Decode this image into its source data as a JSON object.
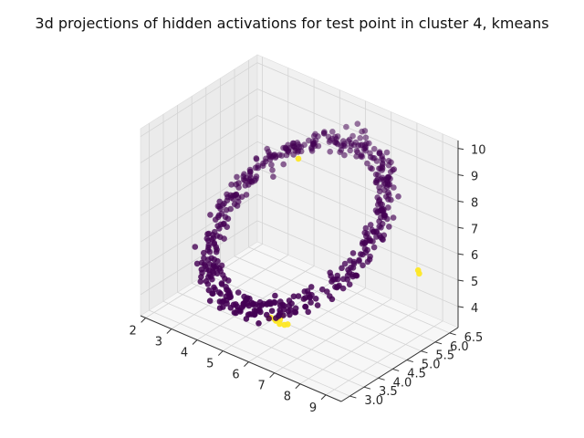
{
  "chart_data": {
    "type": "scatter",
    "projection": "3d",
    "title": "3d projections of hidden activations for test point in cluster 4, kmeans",
    "xlabel": "",
    "ylabel": "",
    "zlabel": "",
    "xlim": [
      1.8,
      9.6
    ],
    "ylim": [
      2.7,
      6.8
    ],
    "zlim": [
      3.2,
      10.3
    ],
    "x_ticks": [
      2,
      3,
      4,
      5,
      6,
      7,
      8,
      9
    ],
    "y_ticks": [
      3.0,
      3.5,
      4.0,
      4.5,
      5.0,
      5.5,
      6.0,
      6.5
    ],
    "y_tick_labels": [
      "3.0",
      "3.5",
      "4.0",
      "4.5",
      "5.0",
      "5.5",
      "6.0",
      "6.5"
    ],
    "z_ticks": [
      4,
      5,
      6,
      7,
      8,
      9,
      10
    ],
    "grid": true,
    "legend": "none",
    "colors": {
      "cluster_other": "#440154",
      "cluster_4": "#fde725",
      "pane_left": "#ebebeb",
      "pane_right": "#f1f1f1",
      "pane_floor": "#f7f7f7",
      "grid": "#d4d4d4"
    },
    "shape": {
      "kind": "ring_cloud",
      "center": [
        5.6,
        4.8,
        6.8
      ],
      "radius_x": 3.3,
      "radius_y": 1.6,
      "radius_z": 3.1,
      "point_count": 520,
      "seed": 7
    },
    "highlight_points": [
      {
        "x": 5.9,
        "y": 3.7,
        "z": 4.1
      },
      {
        "x": 5.9,
        "y": 3.75,
        "z": 4.0
      },
      {
        "x": 6.0,
        "y": 3.8,
        "z": 4.05
      },
      {
        "x": 6.1,
        "y": 3.7,
        "z": 4.0
      },
      {
        "x": 5.8,
        "y": 3.65,
        "z": 4.15
      },
      {
        "x": 6.2,
        "y": 3.78,
        "z": 3.95
      },
      {
        "x": 5.95,
        "y": 3.9,
        "z": 4.1
      },
      {
        "x": 6.05,
        "y": 3.6,
        "z": 4.2
      },
      {
        "x": 5.7,
        "y": 3.7,
        "z": 4.05
      },
      {
        "x": 6.3,
        "y": 3.8,
        "z": 4.0
      },
      {
        "x": 5.5,
        "y": 4.9,
        "z": 9.2
      },
      {
        "x": 8.6,
        "y": 6.3,
        "z": 5.3
      },
      {
        "x": 8.7,
        "y": 6.25,
        "z": 5.25
      }
    ]
  }
}
